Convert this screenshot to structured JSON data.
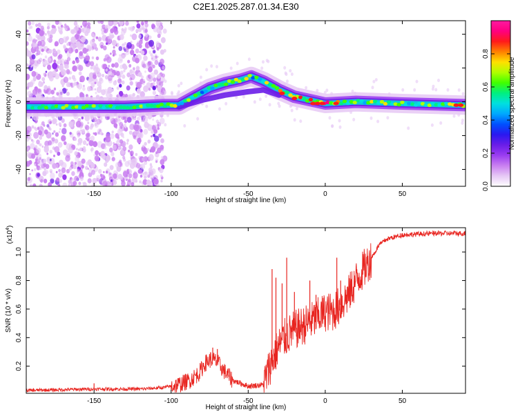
{
  "page_title": "C2E1.2025.287.01.34.E30",
  "chart_data": [
    {
      "id": "spectrogram",
      "type": "heatmap",
      "xlabel": "Height of straight line (km)",
      "ylabel": "Frequency (Hz)",
      "xlim": [
        -194,
        91
      ],
      "ylim": [
        -50,
        48
      ],
      "xticks": [
        -150,
        -100,
        -50,
        0,
        50
      ],
      "yticks": [
        -40,
        -20,
        0,
        20,
        40
      ],
      "grid": false,
      "colorbar": {
        "label": "Normalized spectral amplitude",
        "range": [
          0,
          1
        ],
        "ticks": [
          "0.0",
          "0.2",
          "0.4",
          "0.6",
          "0.8"
        ],
        "colors": [
          "#ffffff",
          "#e6c8f5",
          "#c97ff0",
          "#9a3cf0",
          "#6a1de8",
          "#2a18f0",
          "#0050ff",
          "#00a8ff",
          "#00e0e0",
          "#00f080",
          "#40ff00",
          "#b0ff00",
          "#ffe000",
          "#ff8000",
          "#ff1a1a",
          "#ff0080",
          "#ff1aa0"
        ]
      },
      "ridge": [
        {
          "x": -194,
          "y": -3
        },
        {
          "x": -160,
          "y": -3
        },
        {
          "x": -130,
          "y": -3
        },
        {
          "x": -105,
          "y": -2
        },
        {
          "x": -95,
          "y": -2
        },
        {
          "x": -85,
          "y": 3
        },
        {
          "x": -75,
          "y": 8
        },
        {
          "x": -65,
          "y": 11
        },
        {
          "x": -55,
          "y": 13
        },
        {
          "x": -48,
          "y": 15
        },
        {
          "x": -40,
          "y": 12
        },
        {
          "x": -30,
          "y": 7
        },
        {
          "x": -20,
          "y": 3
        },
        {
          "x": -10,
          "y": 1
        },
        {
          "x": 0,
          "y": -1
        },
        {
          "x": 20,
          "y": 0
        },
        {
          "x": 50,
          "y": -1
        },
        {
          "x": 91,
          "y": -2
        }
      ],
      "noise_band_x": [
        -194,
        -104
      ],
      "spread_branch": [
        {
          "x": -95,
          "y": -3
        },
        {
          "x": -80,
          "y": 1
        },
        {
          "x": -65,
          "y": 4
        },
        {
          "x": -50,
          "y": 6
        },
        {
          "x": -40,
          "y": 7
        },
        {
          "x": -30,
          "y": 4
        }
      ]
    },
    {
      "id": "snr",
      "type": "line",
      "xlabel": "Height of straight line (km)",
      "ylabel": "SNR (10 * v/v)",
      "y_multiplier": "(x10",
      "y_multiplier_exp": "4",
      "y_multiplier_close": ")",
      "xlim": [
        -194,
        91
      ],
      "ylim": [
        0.01,
        1.17
      ],
      "xticks": [
        -150,
        -100,
        -50,
        0,
        50
      ],
      "yticks": [
        0.2,
        0.4,
        0.6,
        0.8,
        1.0
      ],
      "ytick_labels": [
        "0.2",
        "0.4",
        "0.6",
        "0.8",
        "1.0"
      ],
      "grid": false,
      "series": [
        {
          "color": "#e8241f",
          "envelope": [
            {
              "x": -194,
              "y": 0.03
            },
            {
              "x": -150,
              "y": 0.04
            },
            {
              "x": -120,
              "y": 0.04
            },
            {
              "x": -105,
              "y": 0.05
            },
            {
              "x": -95,
              "y": 0.07
            },
            {
              "x": -88,
              "y": 0.1
            },
            {
              "x": -82,
              "y": 0.15
            },
            {
              "x": -78,
              "y": 0.22
            },
            {
              "x": -74,
              "y": 0.25
            },
            {
              "x": -70,
              "y": 0.23
            },
            {
              "x": -66,
              "y": 0.17
            },
            {
              "x": -60,
              "y": 0.1
            },
            {
              "x": -50,
              "y": 0.06
            },
            {
              "x": -40,
              "y": 0.07
            },
            {
              "x": -36,
              "y": 0.2
            },
            {
              "x": -32,
              "y": 0.3
            },
            {
              "x": -28,
              "y": 0.38
            },
            {
              "x": -22,
              "y": 0.44
            },
            {
              "x": -15,
              "y": 0.48
            },
            {
              "x": -8,
              "y": 0.52
            },
            {
              "x": 0,
              "y": 0.58
            },
            {
              "x": 5,
              "y": 0.58
            },
            {
              "x": 10,
              "y": 0.63
            },
            {
              "x": 15,
              "y": 0.7
            },
            {
              "x": 20,
              "y": 0.8
            },
            {
              "x": 25,
              "y": 0.88
            },
            {
              "x": 30,
              "y": 0.96
            },
            {
              "x": 35,
              "y": 1.05
            },
            {
              "x": 40,
              "y": 1.09
            },
            {
              "x": 50,
              "y": 1.12
            },
            {
              "x": 70,
              "y": 1.13
            },
            {
              "x": 91,
              "y": 1.13
            }
          ],
          "spikes": [
            {
              "x": -34.5,
              "y": 0.88
            },
            {
              "x": -32,
              "y": 0.82
            },
            {
              "x": -28,
              "y": 0.78
            },
            {
              "x": -25,
              "y": 0.96
            },
            {
              "x": -20,
              "y": 0.72
            },
            {
              "x": -10,
              "y": 0.8
            },
            {
              "x": -6,
              "y": 0.7
            },
            {
              "x": 7.5,
              "y": 0.96
            },
            {
              "x": 10,
              "y": 0.8
            },
            {
              "x": -73,
              "y": 0.33
            },
            {
              "x": -70,
              "y": 0.32
            },
            {
              "x": -150,
              "y": 0.08
            }
          ]
        }
      ]
    }
  ]
}
